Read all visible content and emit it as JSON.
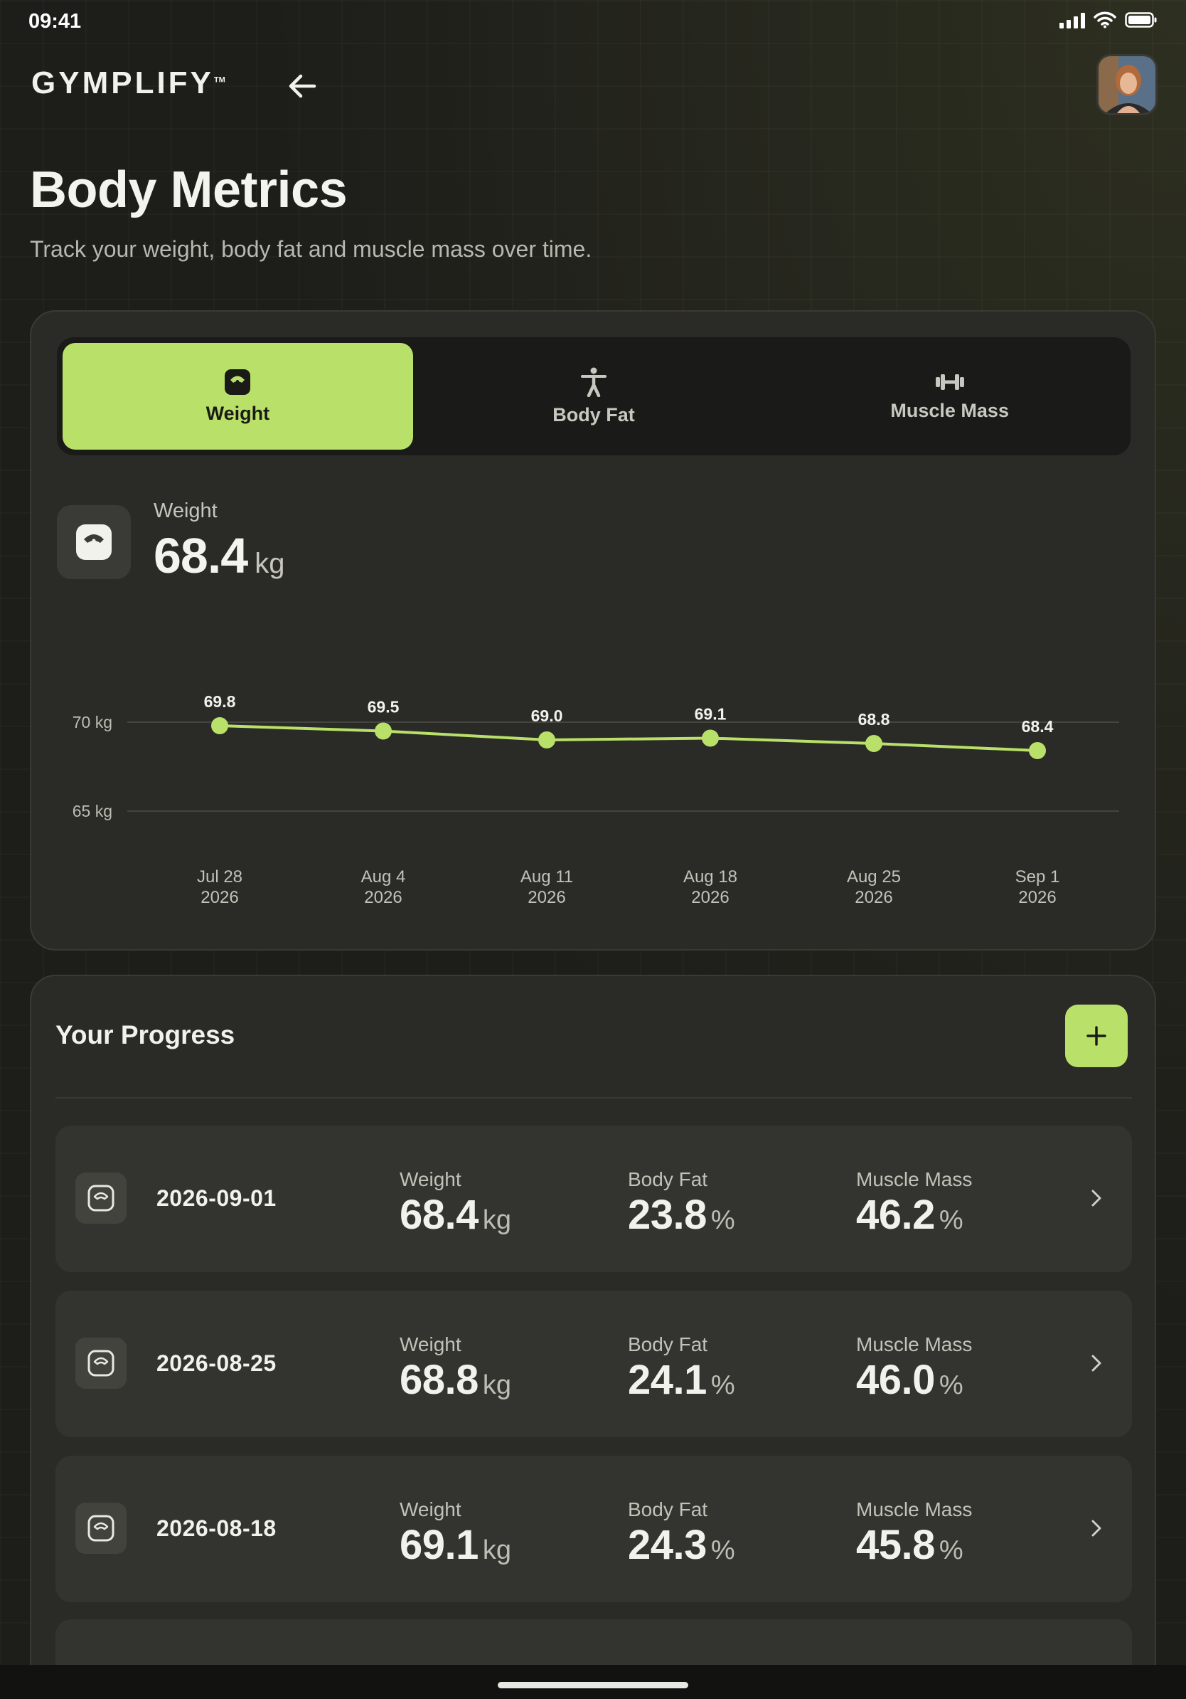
{
  "status_bar": {
    "time": "09:41"
  },
  "header": {
    "logo": "GYMPLIFY",
    "logo_tm": "TM",
    "back_icon": "arrow-left-icon",
    "avatar_alt": "user-avatar"
  },
  "page": {
    "title": "Body Metrics",
    "subtitle": "Track your weight, body fat and muscle mass over time."
  },
  "tabs": [
    {
      "label": "Weight",
      "icon": "scale-icon",
      "active": true
    },
    {
      "label": "Body Fat",
      "icon": "person-icon",
      "active": false
    },
    {
      "label": "Muscle Mass",
      "icon": "dumbbell-icon",
      "active": false
    }
  ],
  "metric": {
    "label": "Weight",
    "value": "68.4",
    "unit": "kg"
  },
  "colors": {
    "accent": "#b9e16a",
    "card": "#2a2a27",
    "background": "#1d1d1a"
  },
  "chart_data": {
    "type": "line",
    "x": [
      "Jul 28 2026",
      "Aug 4 2026",
      "Aug 11 2026",
      "Aug 18 2026",
      "Aug 25 2026",
      "Sep 1 2026"
    ],
    "x_tick_labels": [
      [
        "Jul 28",
        "2026"
      ],
      [
        "Aug 4",
        "2026"
      ],
      [
        "Aug 11",
        "2026"
      ],
      [
        "Aug 18",
        "2026"
      ],
      [
        "Aug 25",
        "2026"
      ],
      [
        "Sep 1",
        "2026"
      ]
    ],
    "series": [
      {
        "values": [
          69.8,
          69.5,
          69.0,
          69.1,
          68.8,
          68.4
        ],
        "labels": [
          "69.8",
          "69.5",
          "69.0",
          "69.1",
          "68.8",
          "68.4"
        ]
      }
    ],
    "y_ticks": [
      70,
      65
    ],
    "y_tick_labels": [
      "70 kg",
      "65 kg"
    ],
    "ylim": [
      65,
      70
    ],
    "grid": true,
    "legend": "none"
  },
  "progress": {
    "title": "Your Progress",
    "add_icon": "plus-icon",
    "entries": [
      {
        "date": "2026-09-01",
        "weight_label": "Weight",
        "weight": "68.4",
        "weight_unit": "kg",
        "fat_label": "Body Fat",
        "fat": "23.8",
        "fat_unit": "%",
        "muscle_label": "Muscle Mass",
        "muscle": "46.2",
        "muscle_unit": "%"
      },
      {
        "date": "2026-08-25",
        "weight_label": "Weight",
        "weight": "68.8",
        "weight_unit": "kg",
        "fat_label": "Body Fat",
        "fat": "24.1",
        "fat_unit": "%",
        "muscle_label": "Muscle Mass",
        "muscle": "46.0",
        "muscle_unit": "%"
      },
      {
        "date": "2026-08-18",
        "weight_label": "Weight",
        "weight": "69.1",
        "weight_unit": "kg",
        "fat_label": "Body Fat",
        "fat": "24.3",
        "fat_unit": "%",
        "muscle_label": "Muscle Mass",
        "muscle": "45.8",
        "muscle_unit": "%"
      }
    ]
  }
}
